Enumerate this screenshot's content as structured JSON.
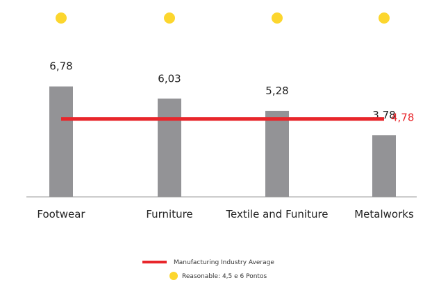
{
  "chart_data": {
    "type": "bar",
    "categories": [
      "Footwear",
      "Furniture",
      "Textile and Funiture",
      "Metalworks"
    ],
    "values": [
      6.78,
      6.03,
      5.28,
      3.78
    ],
    "value_labels": [
      "6,78",
      "6,03",
      "5,28",
      "3,78"
    ],
    "ylim": [
      0,
      8
    ],
    "reference_line": {
      "value": 4.78,
      "label": "4,78",
      "name": "Manufacturing Industry Average",
      "color": "#e8262b"
    },
    "markers": {
      "name": "Reasonable: 4,5 e 6 Pontos",
      "color": "#fcd62e"
    },
    "bar_color": "#939396",
    "axis_color": "#999999",
    "grid": false,
    "legend_position": "bottom-center"
  },
  "legend": {
    "avg_label": "Manufacturing Industry Average",
    "reasonable_label": "Reasonable: 4,5 e 6 Pontos"
  }
}
